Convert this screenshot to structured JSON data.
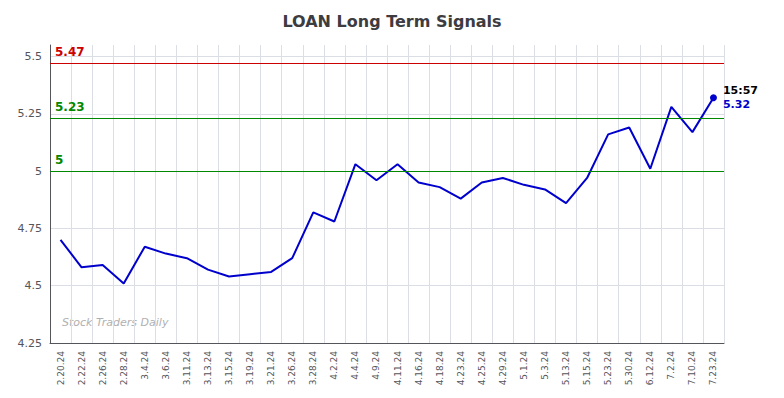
{
  "chart_data": {
    "type": "line",
    "title": "LOAN Long Term Signals",
    "categories": [
      "2.20.24",
      "2.22.24",
      "2.26.24",
      "2.28.24",
      "3.4.24",
      "3.6.24",
      "3.11.24",
      "3.13.24",
      "3.15.24",
      "3.19.24",
      "3.21.24",
      "3.26.24",
      "3.28.24",
      "4.2.24",
      "4.4.24",
      "4.9.24",
      "4.11.24",
      "4.16.24",
      "4.18.24",
      "4.23.24",
      "4.25.24",
      "4.29.24",
      "5.1.24",
      "5.3.24",
      "5.13.24",
      "5.15.24",
      "5.23.24",
      "5.30.24",
      "6.12.24",
      "7.2.24",
      "7.10.24",
      "7.23.24"
    ],
    "values": [
      4.7,
      4.58,
      4.59,
      4.51,
      4.67,
      4.64,
      4.62,
      4.57,
      4.54,
      4.55,
      4.56,
      4.62,
      4.82,
      4.78,
      5.03,
      4.96,
      5.03,
      4.95,
      4.93,
      4.88,
      4.95,
      4.97,
      4.94,
      4.92,
      4.86,
      4.97,
      5.16,
      5.19,
      5.01,
      5.28,
      5.17,
      5.32
    ],
    "color": "#0000cc",
    "ylim": [
      4.25,
      5.55
    ],
    "yticks": [
      4.25,
      4.5,
      4.75,
      5,
      5.25,
      5.5
    ],
    "grid": true,
    "hlines": [
      {
        "y": 5.47,
        "label": "5.47",
        "color": "#cc0000"
      },
      {
        "y": 5.23,
        "label": "5.23",
        "color": "#008800"
      },
      {
        "y": 5,
        "label": "5",
        "color": "#008800"
      }
    ],
    "end_label": {
      "time": "15:57",
      "price": "5.32"
    },
    "watermark": "Stock Traders Daily"
  }
}
